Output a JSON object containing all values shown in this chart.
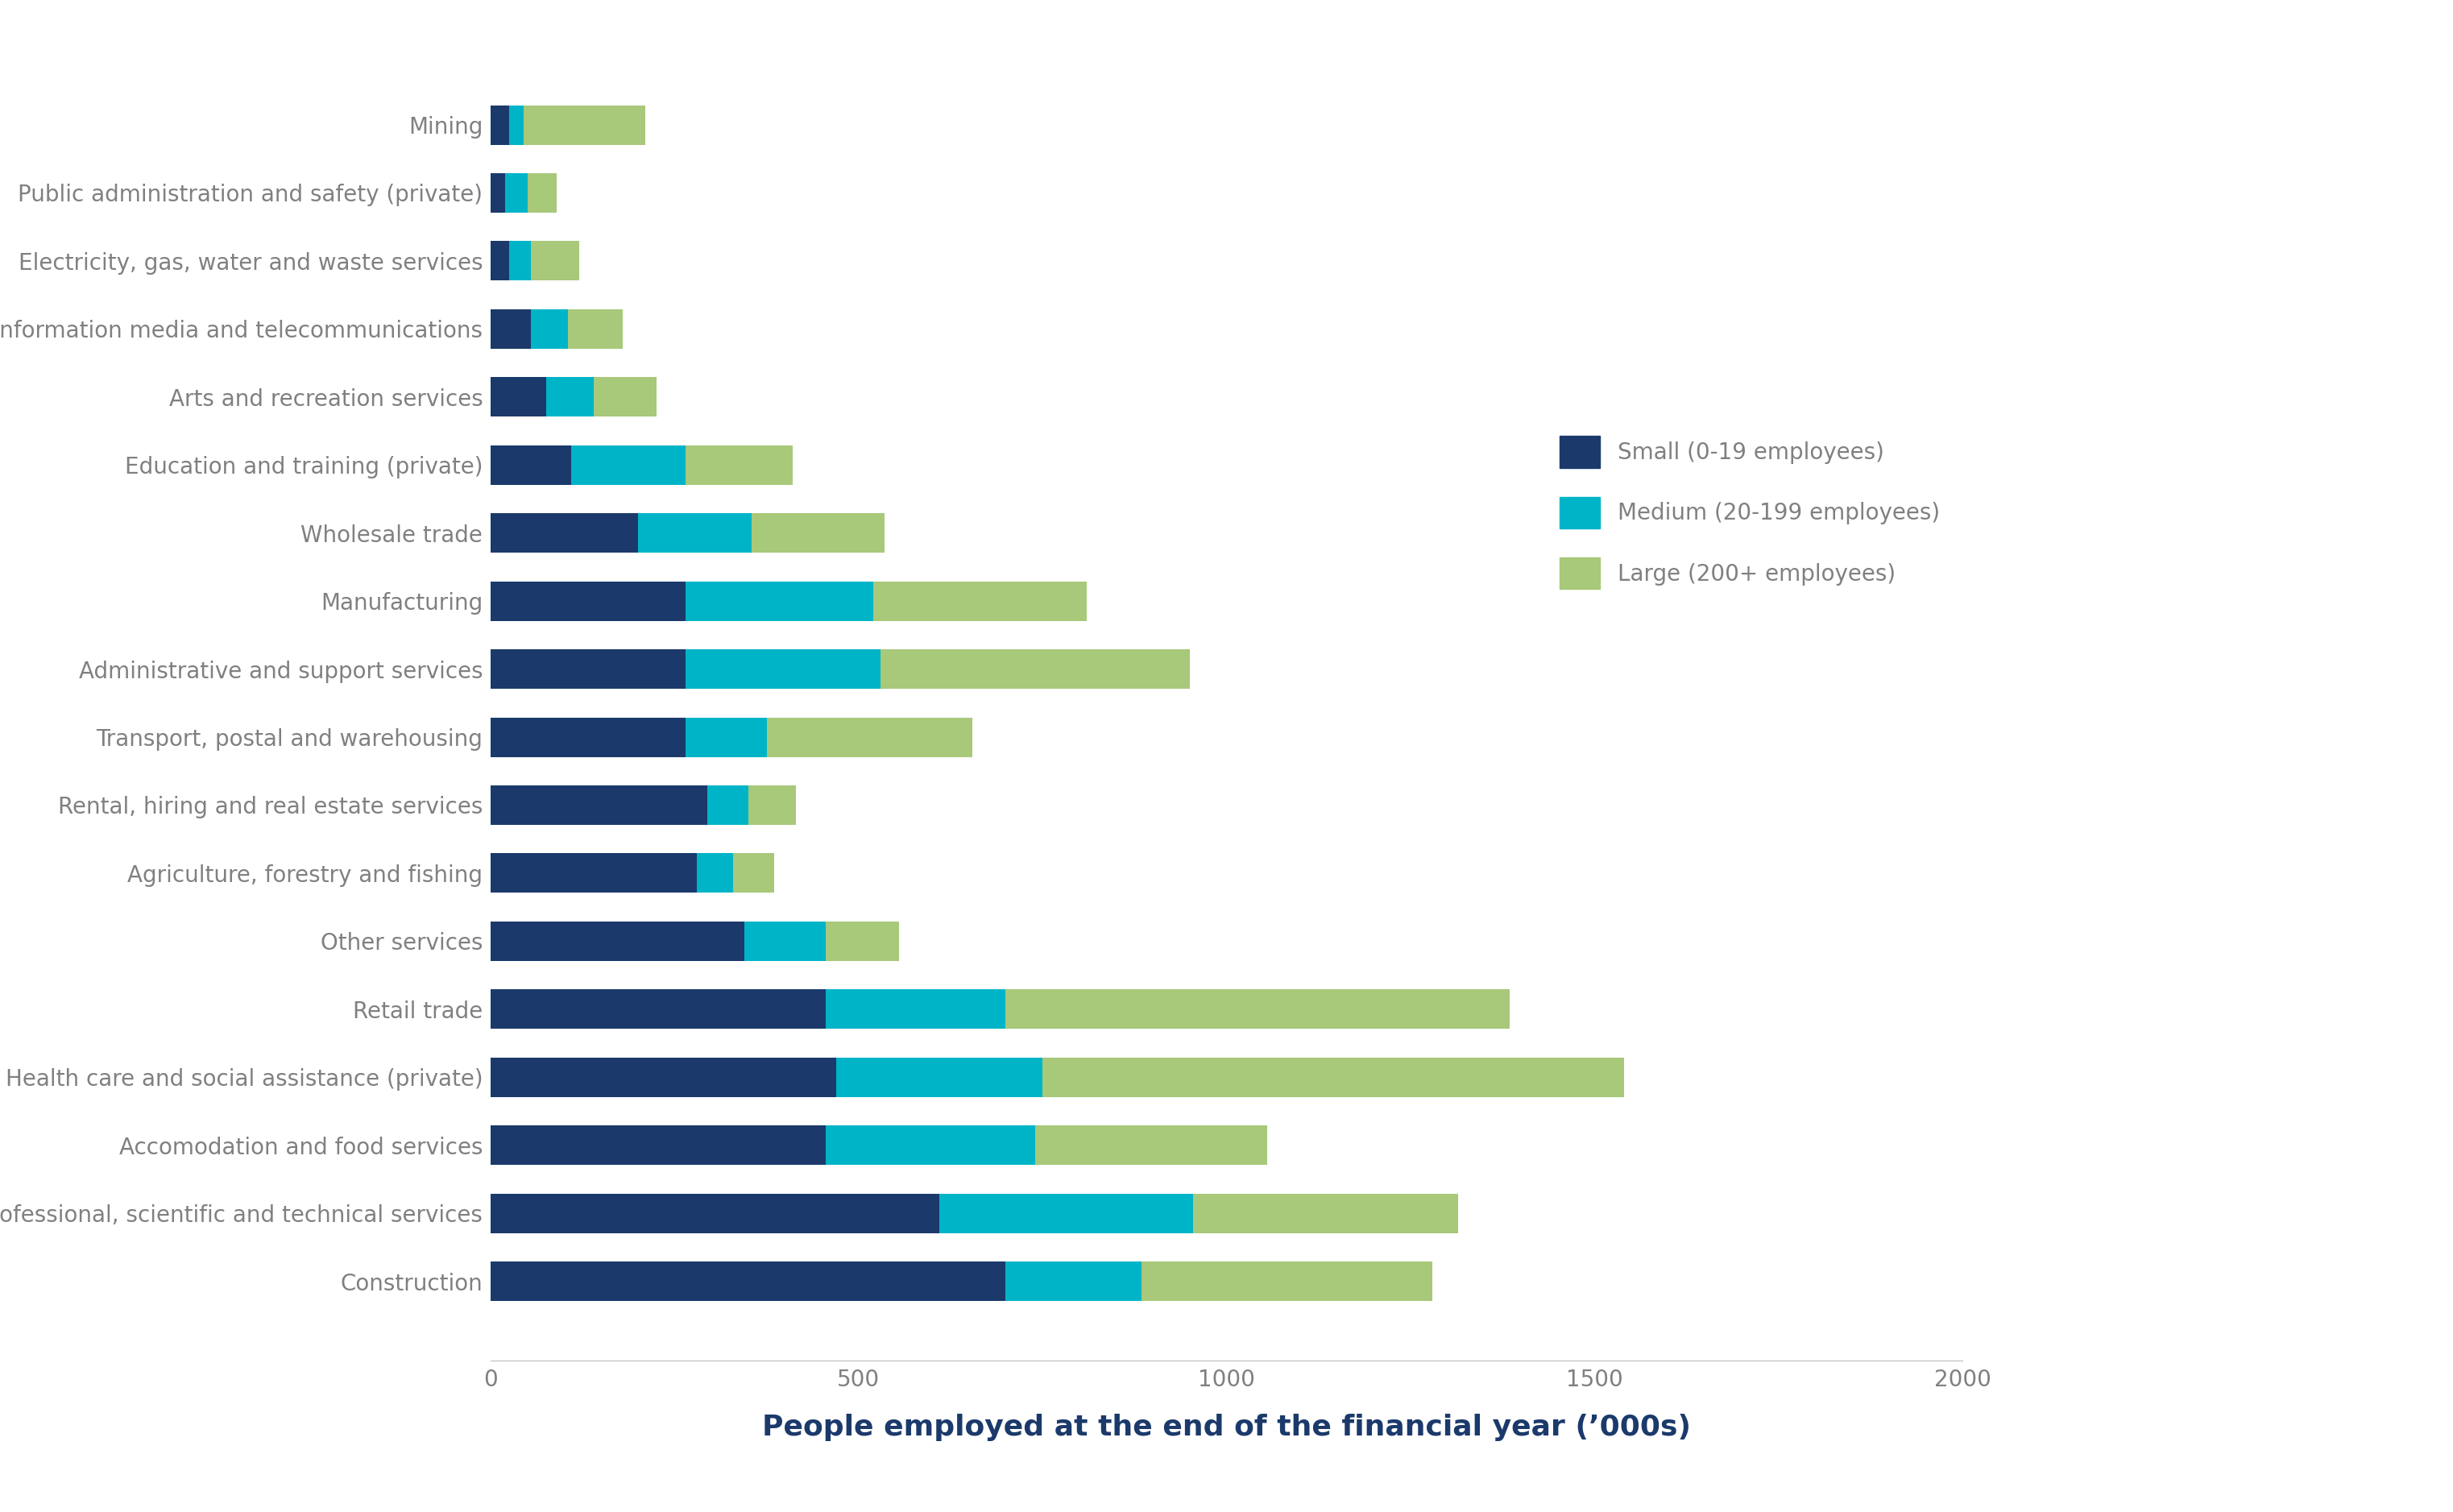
{
  "categories": [
    "Mining",
    "Public administration and safety (private)",
    "Electricity, gas, water and waste services",
    "Information media and telecommunications",
    "Arts and recreation services",
    "Education and training (private)",
    "Wholesale trade",
    "Manufacturing",
    "Administrative and support services",
    "Transport, postal and warehousing",
    "Rental, hiring and real estate services",
    "Agriculture, forestry and fishing",
    "Other services",
    "Retail trade",
    "Health care and social assistance (private)",
    "Accomodation and food services",
    "Professional, scientific and technical services",
    "Construction"
  ],
  "small": [
    25,
    20,
    25,
    55,
    75,
    110,
    200,
    265,
    265,
    265,
    295,
    280,
    345,
    455,
    470,
    455,
    610,
    700
  ],
  "medium": [
    20,
    30,
    30,
    50,
    65,
    155,
    155,
    255,
    265,
    110,
    55,
    50,
    110,
    245,
    280,
    285,
    345,
    185
  ],
  "large": [
    165,
    40,
    65,
    75,
    85,
    145,
    180,
    290,
    420,
    280,
    65,
    55,
    100,
    685,
    790,
    315,
    360,
    395
  ],
  "small_color": "#1b3a6b",
  "medium_color": "#00b4c8",
  "large_color": "#a8c87a",
  "legend_labels": [
    "Small (0-19 employees)",
    "Medium (20-199 employees)",
    "Large (200+ employees)"
  ],
  "xlabel": "People employed at the end of the financial year (’000s)",
  "xlim": [
    0,
    2000
  ],
  "xticks": [
    0,
    500,
    1000,
    1500,
    2000
  ],
  "background_color": "#ffffff",
  "label_color": "#808080",
  "xlabel_color": "#1b3a6b",
  "xlabel_fontsize": 26,
  "tick_fontsize": 20,
  "label_fontsize": 20,
  "legend_fontsize": 20,
  "bar_height": 0.58
}
